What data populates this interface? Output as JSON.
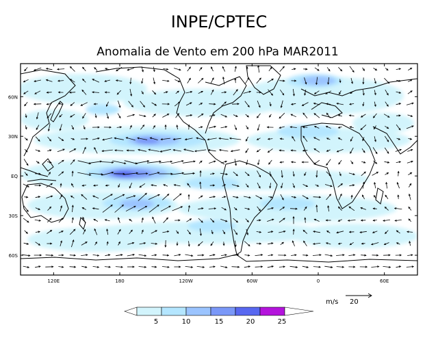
{
  "header": {
    "title": "INPE/CPTEC",
    "subtitle": "Anomalia de Vento em 200 hPa MAR2011"
  },
  "map": {
    "lat_labels": [
      "60N",
      "30N",
      "EQ",
      "30S",
      "60S"
    ],
    "lat_values": [
      60,
      30,
      0,
      -30,
      -60
    ],
    "lon_labels": [
      "120E",
      "180",
      "120W",
      "60W",
      "0",
      "60E"
    ],
    "lon_values": [
      120,
      180,
      240,
      300,
      360,
      420
    ],
    "lat_range": [
      -75,
      85
    ],
    "lon_range": [
      90,
      450
    ]
  },
  "reference_vector": {
    "unit_label": "m/s",
    "magnitude_label": "20"
  },
  "colorbar": {
    "tick_labels": [
      "5",
      "10",
      "15",
      "20",
      "25"
    ],
    "colors": [
      "#ffffff",
      "#d2f4fc",
      "#b4e6ff",
      "#9bc4ff",
      "#7a98f8",
      "#5868f0",
      "#b414dc"
    ]
  },
  "colors": {
    "land_outline": "#000000",
    "frame": "#000000",
    "vectors": "#000000"
  }
}
